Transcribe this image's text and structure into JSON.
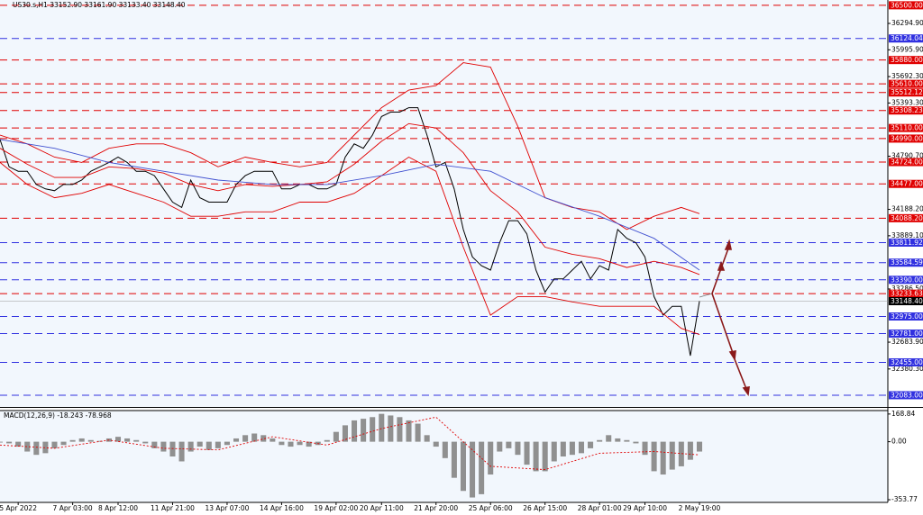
{
  "chart_data": {
    "type": "line",
    "title": "US30.s,H1  33152.90 33161.90 33133.40 33148.40",
    "categories": [
      null,
      null,
      "5 Apr 2022",
      null,
      null,
      null,
      null,
      null,
      "7 Apr 03:00",
      null,
      null,
      null,
      null,
      "8 Apr 12:00",
      null,
      null,
      null,
      null,
      null,
      "11 Apr 21:00",
      null,
      null,
      null,
      null,
      null,
      "13 Apr 07:00",
      null,
      null,
      null,
      null,
      null,
      "14 Apr 16:00",
      null,
      null,
      null,
      null,
      null,
      "19 Apr 02:00",
      null,
      null,
      null,
      null,
      "20 Apr 11:00",
      null,
      null,
      null,
      null,
      null,
      "21 Apr 20:00",
      null,
      null,
      null,
      null,
      null,
      "25 Apr 06:00",
      null,
      null,
      null,
      null,
      null,
      "26 Apr 15:00",
      null,
      null,
      null,
      null,
      null,
      "28 Apr 01:00",
      null,
      null,
      null,
      null,
      "29 Apr 10:00",
      null,
      null,
      null,
      null,
      null,
      "2 May 19:00"
    ],
    "ylim": [
      31950,
      36560
    ],
    "yticks": [
      {
        "value": 36294.9,
        "label": "36294.90"
      },
      {
        "value": 35995.9,
        "label": "35995.90"
      },
      {
        "value": 35692.3,
        "label": "35692.30"
      },
      {
        "value": 35393.3,
        "label": "35393.30"
      },
      {
        "value": 34790.7,
        "label": "34790.70"
      },
      {
        "value": 34188.2,
        "label": "34188.20"
      },
      {
        "value": 33889.1,
        "label": "33889.10"
      },
      {
        "value": 33286.5,
        "label": "33286.50"
      },
      {
        "value": 32683.9,
        "label": "32683.90"
      },
      {
        "value": 32380.3,
        "label": "32380.30"
      }
    ],
    "levels": [
      {
        "value": 36500,
        "label": "36500.00",
        "color": "#e00000"
      },
      {
        "value": 36124.04,
        "label": "36124.04",
        "color": "#3030e0"
      },
      {
        "value": 35880,
        "label": "35880.00",
        "color": "#e00000"
      },
      {
        "value": 35610,
        "label": "35610.00",
        "color": "#e00000"
      },
      {
        "value": 35512.12,
        "label": "35512.12",
        "color": "#e00000"
      },
      {
        "value": 35308.23,
        "label": "35308.23",
        "color": "#e00000"
      },
      {
        "value": 35110,
        "label": "35110.00",
        "color": "#e00000"
      },
      {
        "value": 34990,
        "label": "34990.00",
        "color": "#e00000"
      },
      {
        "value": 34724,
        "label": "34724.00",
        "color": "#e00000"
      },
      {
        "value": 34477,
        "label": "34477.00",
        "color": "#e00000"
      },
      {
        "value": 34088.2,
        "label": "34088.20",
        "color": "#e00000"
      },
      {
        "value": 33811.92,
        "label": "33811.92",
        "color": "#3030e0"
      },
      {
        "value": 33584.59,
        "label": "33584.59",
        "color": "#3030e0"
      },
      {
        "value": 33390,
        "label": "33390.00",
        "color": "#3030e0"
      },
      {
        "value": 33233.63,
        "label": "33233.63",
        "color": "#e00000"
      },
      {
        "value": 32975,
        "label": "32975.00",
        "color": "#3030e0"
      },
      {
        "value": 32781,
        "label": "32781.00",
        "color": "#3030e0"
      },
      {
        "value": 32455,
        "label": "32455.00",
        "color": "#3030e0"
      },
      {
        "value": 32083,
        "label": "32083.00",
        "color": "#3030e0"
      }
    ],
    "current": {
      "value": 33148.4,
      "label": "33148.40"
    },
    "series": [
      {
        "color": "#000000",
        "values": [
          34980,
          34670,
          34620,
          34620,
          34470,
          34420,
          34400,
          34470,
          34470,
          34520,
          34620,
          34670,
          34720,
          34780,
          34720,
          34620,
          34620,
          34570,
          34420,
          34270,
          34210,
          34520,
          34320,
          34270,
          34270,
          34270,
          34470,
          34570,
          34620,
          34620,
          34620,
          34420,
          34420,
          34470,
          34470,
          34420,
          34420,
          34470,
          34780,
          34930,
          34880,
          35030,
          35240,
          35290,
          35290,
          35340,
          35340,
          35030,
          34670,
          34720,
          34420,
          33960,
          33650,
          33550,
          33500,
          33810,
          34060,
          34060,
          33910,
          33500,
          33250,
          33400,
          33400,
          33500,
          33600,
          33400,
          33550,
          33500,
          33960,
          33860,
          33810,
          33650,
          33200,
          32990,
          33090,
          33090,
          32530,
          33148.4
        ]
      },
      {
        "color": "#e00000",
        "x": [
          0,
          3,
          6,
          9,
          12,
          15,
          18,
          21,
          24,
          27,
          30,
          33,
          36,
          39,
          42,
          45,
          48,
          51,
          54,
          57,
          60,
          63,
          66,
          69,
          72,
          75,
          77
        ],
        "values": [
          35030,
          34930,
          34780,
          34720,
          34880,
          34930,
          34930,
          34830,
          34670,
          34780,
          34720,
          34670,
          34720,
          35030,
          35340,
          35540,
          35590,
          35850,
          35800,
          35130,
          34320,
          34210,
          34160,
          33960,
          34110,
          34210,
          34140
        ]
      },
      {
        "color": "#e00000",
        "x": [
          0,
          3,
          6,
          9,
          12,
          15,
          18,
          21,
          24,
          27,
          30,
          33,
          36,
          39,
          42,
          45,
          48,
          51,
          54,
          57,
          60,
          63,
          66,
          69,
          72,
          75,
          77
        ],
        "values": [
          34880,
          34700,
          34550,
          34550,
          34670,
          34650,
          34600,
          34470,
          34400,
          34470,
          34450,
          34470,
          34500,
          34700,
          34960,
          35160,
          35110,
          34830,
          34400,
          34160,
          33760,
          33680,
          33630,
          33530,
          33600,
          33530,
          33450
        ]
      },
      {
        "color": "#e00000",
        "x": [
          0,
          3,
          6,
          9,
          12,
          15,
          18,
          21,
          24,
          27,
          30,
          33,
          36,
          39,
          42,
          45,
          48,
          51,
          54,
          57,
          60,
          63,
          66,
          69,
          72,
          75,
          77
        ],
        "values": [
          34720,
          34470,
          34320,
          34370,
          34470,
          34370,
          34270,
          34110,
          34110,
          34160,
          34160,
          34270,
          34270,
          34370,
          34570,
          34780,
          34620,
          33760,
          32990,
          33200,
          33200,
          33140,
          33090,
          33090,
          33090,
          32840,
          32770
        ]
      },
      {
        "color": "#4050d0",
        "x": [
          0,
          6,
          12,
          18,
          24,
          30,
          36,
          42,
          48,
          54,
          60,
          66,
          72,
          77
        ],
        "values": [
          34980,
          34880,
          34720,
          34620,
          34520,
          34470,
          34470,
          34570,
          34700,
          34620,
          34320,
          34110,
          33860,
          33500
        ]
      }
    ],
    "macd": {
      "title": "MACD(12,26,9) -18.243 -78.968",
      "ylim": [
        -370,
        190
      ],
      "yticks": [
        {
          "value": 168.84,
          "label": "168.84"
        },
        {
          "value": 0,
          "label": "0.00"
        },
        {
          "value": -353.77,
          "label": "-353.77"
        }
      ],
      "histogram": {
        "color": "#909090",
        "values": [
          -5,
          -10,
          -30,
          -60,
          -80,
          -70,
          -40,
          -20,
          10,
          20,
          10,
          5,
          20,
          30,
          20,
          10,
          -10,
          -40,
          -60,
          -90,
          -120,
          -60,
          -30,
          -50,
          -40,
          -20,
          20,
          40,
          50,
          40,
          20,
          -20,
          -30,
          -20,
          -30,
          -20,
          10,
          60,
          100,
          130,
          140,
          150,
          170,
          160,
          150,
          130,
          110,
          40,
          -30,
          -100,
          -220,
          -300,
          -340,
          -320,
          -200,
          -60,
          -40,
          -80,
          -140,
          -180,
          -180,
          -120,
          -90,
          -80,
          -70,
          -40,
          10,
          40,
          20,
          10,
          -10,
          -80,
          -180,
          -200,
          -170,
          -150,
          -110,
          -60
        ]
      },
      "signal": {
        "color": "#e00000",
        "x": [
          0,
          6,
          12,
          18,
          24,
          30,
          36,
          42,
          48,
          54,
          60,
          66,
          72,
          77
        ],
        "values": [
          -20,
          -40,
          10,
          -40,
          -50,
          30,
          -20,
          80,
          150,
          -150,
          -170,
          -70,
          -60,
          -80
        ]
      }
    }
  }
}
